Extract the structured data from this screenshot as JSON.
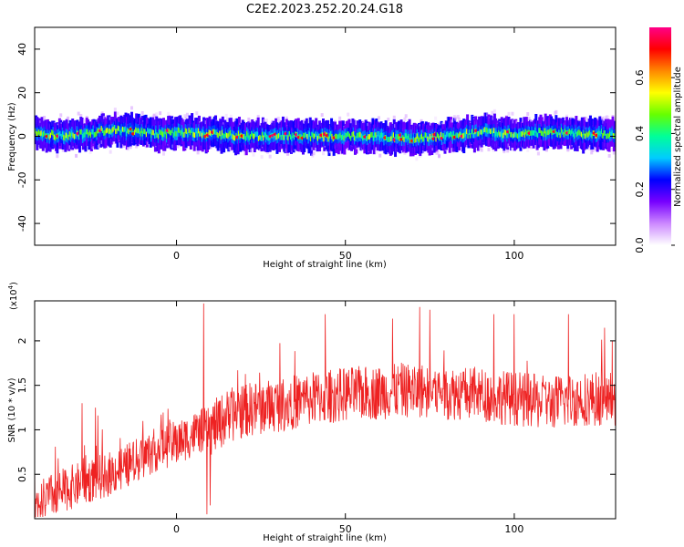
{
  "title": "C2E2.2023.252.20.24.G18",
  "chart_data": [
    {
      "type": "heatmap",
      "title": "C2E2.2023.252.20.24.G18",
      "xlabel": "Height of straight line (km)",
      "ylabel": "Frequency (Hz)",
      "xlim": [
        -42,
        130
      ],
      "ylim": [
        -50,
        50
      ],
      "xticks": [
        0,
        50,
        100
      ],
      "yticks": [
        -40,
        -20,
        0,
        20,
        40
      ],
      "colorbar": {
        "label": "Normalized spectral amplitude",
        "range": [
          0,
          0.78
        ],
        "ticks": [
          0.0,
          0.2,
          0.4,
          0.6
        ],
        "colormap": [
          "#ffffff",
          "#cc88ff",
          "#7700ff",
          "#0000ff",
          "#00ccff",
          "#00ff99",
          "#66ff00",
          "#ffff00",
          "#ff8800",
          "#ff0000",
          "#ff0088"
        ]
      },
      "band": {
        "center_hz": [
          [
            -42,
            2
          ],
          [
            -35,
            0
          ],
          [
            -28,
            1
          ],
          [
            -20,
            3
          ],
          [
            -12,
            2
          ],
          [
            -5,
            1
          ],
          [
            0,
            2
          ],
          [
            10,
            1
          ],
          [
            20,
            0
          ],
          [
            30,
            0
          ],
          [
            40,
            0
          ],
          [
            50,
            0
          ],
          [
            60,
            0
          ],
          [
            70,
            -1
          ],
          [
            80,
            0
          ],
          [
            90,
            2
          ],
          [
            100,
            1
          ],
          [
            110,
            2
          ],
          [
            120,
            1
          ],
          [
            130,
            1
          ]
        ],
        "core_halfwidth_hz": 3,
        "spread_halfwidth_hz": 10,
        "peak_amplitude": 0.78
      }
    },
    {
      "type": "line",
      "xlabel": "Height of straight line (km)",
      "ylabel": "SNR (10 * v/v)",
      "y_multiplier": "(x10",
      "y_multiplier_exp": "4",
      "xlim": [
        -42,
        130
      ],
      "ylim": [
        0,
        2.45
      ],
      "xticks": [
        0,
        50,
        100
      ],
      "yticks": [
        0.5,
        1.0,
        1.5,
        2.0
      ],
      "color": "#ee2222",
      "trend": [
        [
          -42,
          0.15
        ],
        [
          -35,
          0.3
        ],
        [
          -28,
          0.4
        ],
        [
          -20,
          0.5
        ],
        [
          -12,
          0.65
        ],
        [
          -5,
          0.8
        ],
        [
          0,
          0.85
        ],
        [
          5,
          0.95
        ],
        [
          8,
          1.0
        ],
        [
          10,
          1.0
        ],
        [
          15,
          1.15
        ],
        [
          20,
          1.22
        ],
        [
          30,
          1.28
        ],
        [
          40,
          1.35
        ],
        [
          50,
          1.4
        ],
        [
          60,
          1.42
        ],
        [
          70,
          1.45
        ],
        [
          80,
          1.42
        ],
        [
          90,
          1.4
        ],
        [
          100,
          1.35
        ],
        [
          110,
          1.3
        ],
        [
          120,
          1.35
        ],
        [
          130,
          1.35
        ]
      ],
      "noise_halfwidth": 0.28,
      "spikes": [
        [
          -28,
          1.3
        ],
        [
          -24,
          1.25
        ],
        [
          -10,
          1.1
        ],
        [
          8,
          2.42
        ],
        [
          9,
          2.3
        ],
        [
          44,
          2.3
        ],
        [
          64,
          2.25
        ],
        [
          72,
          2.38
        ],
        [
          75,
          2.35
        ],
        [
          94,
          2.3
        ],
        [
          100,
          2.3
        ],
        [
          116,
          2.3
        ],
        [
          129,
          2.0
        ]
      ],
      "dip": [
        [
          9,
          0.05
        ],
        [
          10,
          0.15
        ]
      ]
    }
  ]
}
